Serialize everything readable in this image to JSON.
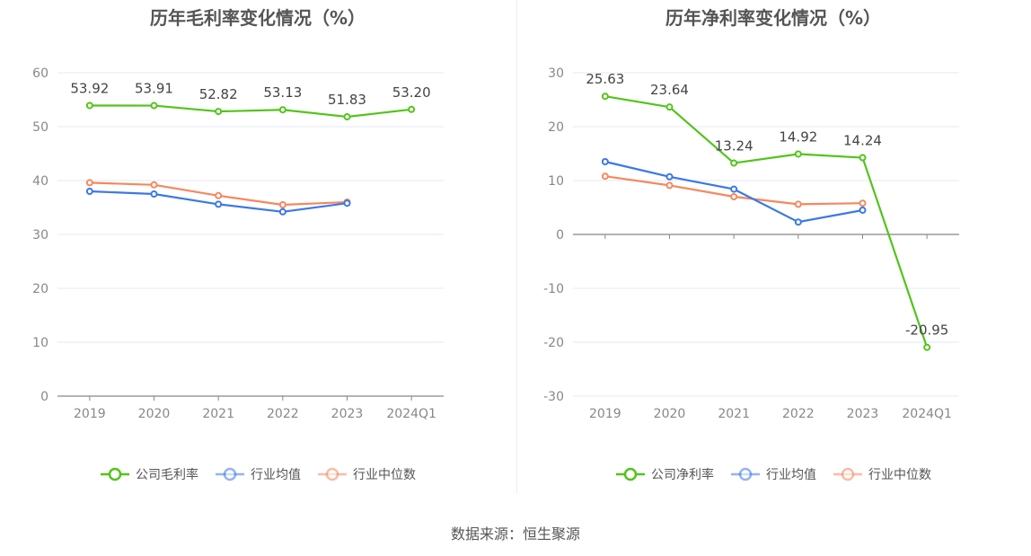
{
  "source_label": "数据来源：恒生聚源",
  "chart_data": [
    {
      "type": "line",
      "title": "历年毛利率变化情况（%）",
      "categories": [
        "2019",
        "2020",
        "2021",
        "2022",
        "2023",
        "2024Q1"
      ],
      "ylim": [
        0,
        60
      ],
      "yticks": [
        0,
        10,
        20,
        30,
        40,
        50,
        60
      ],
      "grid": true,
      "legend_position": "bottom",
      "series": [
        {
          "name": "公司毛利率",
          "color": "#52c41a",
          "labels": true,
          "values": [
            53.92,
            53.91,
            52.82,
            53.13,
            51.83,
            53.2
          ],
          "value_labels": [
            "53.92",
            "53.91",
            "52.82",
            "53.13",
            "51.83",
            "53.20"
          ]
        },
        {
          "name": "行业均值",
          "color": "#3b78e7",
          "labels": false,
          "values": [
            38.0,
            37.5,
            35.6,
            34.2,
            35.8,
            null
          ]
        },
        {
          "name": "行业中位数",
          "color": "#f5885f",
          "labels": false,
          "values": [
            39.6,
            39.2,
            37.2,
            35.5,
            36.0,
            null
          ]
        }
      ]
    },
    {
      "type": "line",
      "title": "历年净利率变化情况（%）",
      "categories": [
        "2019",
        "2020",
        "2021",
        "2022",
        "2023",
        "2024Q1"
      ],
      "ylim": [
        -30,
        30
      ],
      "yticks": [
        -30,
        -20,
        -10,
        0,
        10,
        20,
        30
      ],
      "grid": true,
      "legend_position": "bottom",
      "series": [
        {
          "name": "公司净利率",
          "color": "#52c41a",
          "labels": true,
          "values": [
            25.63,
            23.64,
            13.24,
            14.92,
            14.24,
            -20.95
          ],
          "value_labels": [
            "25.63",
            "23.64",
            "13.24",
            "14.92",
            "14.24",
            "-20.95"
          ]
        },
        {
          "name": "行业均值",
          "color": "#3b78e7",
          "labels": false,
          "values": [
            13.5,
            10.7,
            8.4,
            2.3,
            4.5,
            null
          ]
        },
        {
          "name": "行业中位数",
          "color": "#f5885f",
          "labels": false,
          "values": [
            10.8,
            9.1,
            7.0,
            5.6,
            5.8,
            null
          ]
        }
      ]
    }
  ]
}
